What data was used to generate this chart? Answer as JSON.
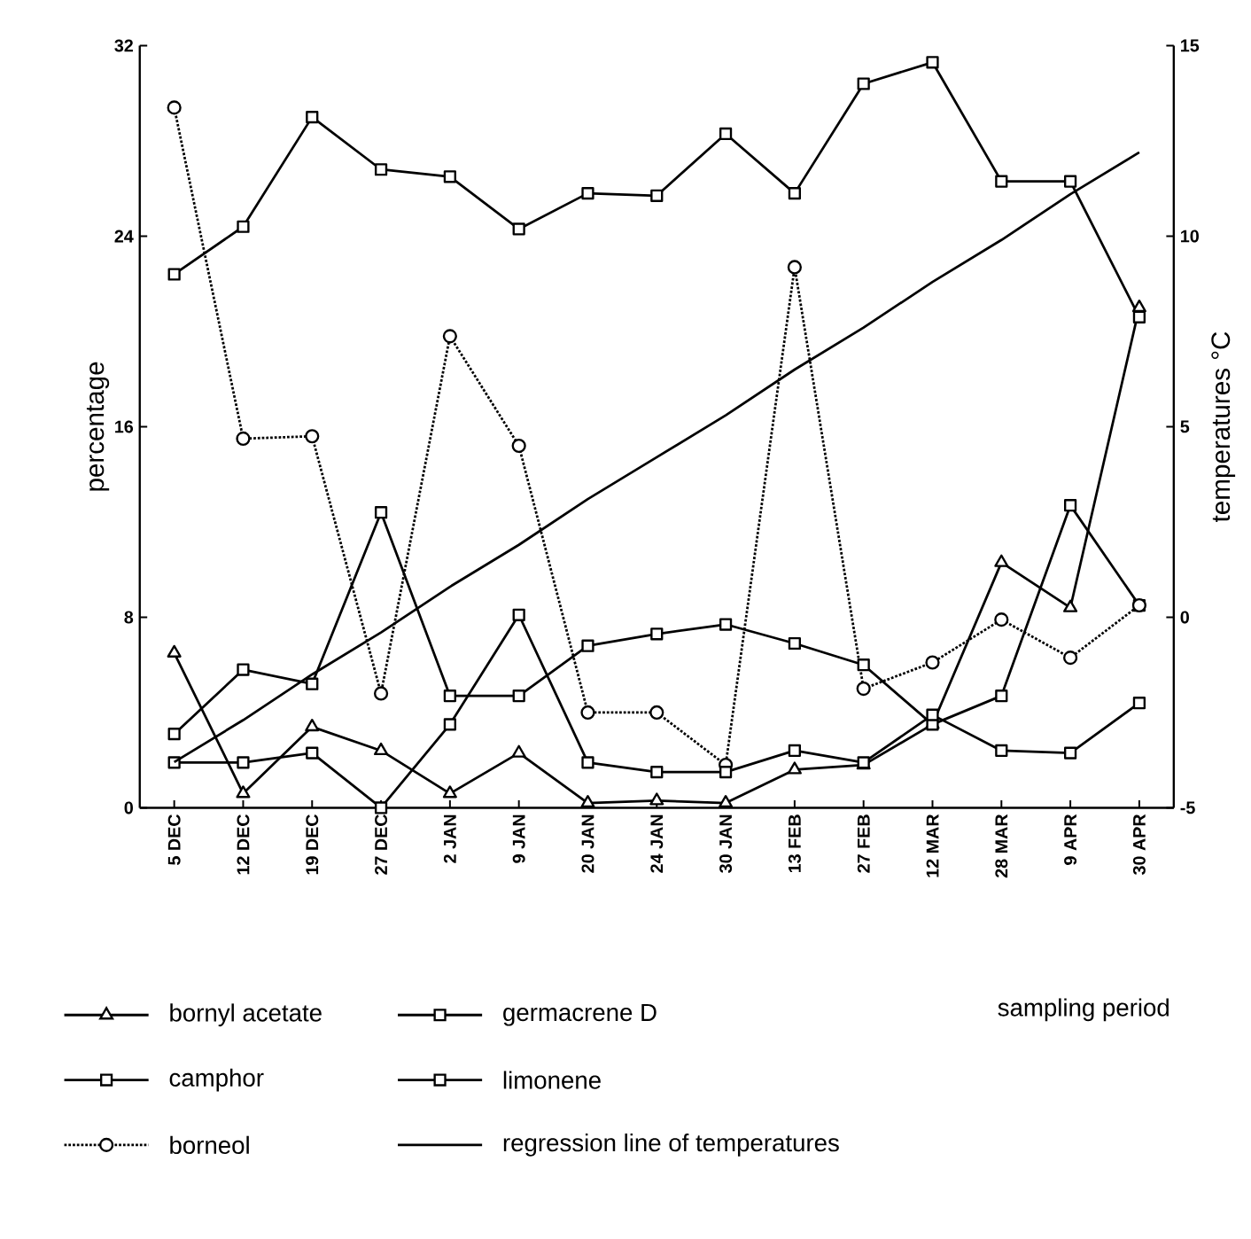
{
  "chart_data": {
    "type": "line",
    "annotations": [
      "sampling period"
    ],
    "ylabel": "percentage",
    "y2label": "temperatures °C",
    "categories": [
      "5 DEC",
      "12 DEC",
      "19 DEC",
      "27 DEC",
      "2 JAN",
      "9 JAN",
      "20 JAN",
      "24 JAN",
      "30 JAN",
      "13 FEB",
      "27 FEB",
      "12 MAR",
      "28 MAR",
      "9 APR",
      "30 APR"
    ],
    "ylim": [
      0,
      32
    ],
    "yticks": [
      0,
      8,
      16,
      24,
      32
    ],
    "y2lim": [
      -5,
      15
    ],
    "y2ticks": [
      -5,
      0,
      5,
      10,
      15
    ],
    "legend": "bottom",
    "series": [
      {
        "name": "bornyl acetate",
        "color": "#000000",
        "marker": "triangle",
        "line_style": "solid",
        "values": [
          6.5,
          0.6,
          3.4,
          2.4,
          0.6,
          2.3,
          0.2,
          0.3,
          0.2,
          1.6,
          1.8,
          3.5,
          10.3,
          8.4,
          21.0
        ]
      },
      {
        "name": "camphor",
        "color": "#000000",
        "marker": "square",
        "line_style": "solid",
        "values": [
          3.1,
          5.8,
          5.2,
          12.4,
          4.7,
          4.7,
          6.8,
          7.3,
          7.7,
          6.9,
          6.0,
          3.5,
          4.7,
          12.7,
          8.5
        ]
      },
      {
        "name": "borneol",
        "color": "#000000",
        "marker": "circle",
        "line_style": "dotted",
        "values": [
          29.4,
          15.5,
          15.6,
          4.8,
          19.8,
          15.2,
          4.0,
          4.0,
          1.8,
          22.7,
          5.0,
          6.1,
          7.9,
          6.3,
          8.5
        ]
      },
      {
        "name": "germacrene D",
        "color": "#000000",
        "marker": "square",
        "line_style": "solid",
        "values": [
          1.9,
          1.9,
          2.3,
          0.0,
          3.5,
          8.1,
          1.9,
          1.5,
          1.5,
          2.4,
          1.9,
          3.9,
          2.4,
          2.3,
          4.4
        ]
      },
      {
        "name": "limonene",
        "color": "#000000",
        "marker": "square",
        "line_style": "solid",
        "values": [
          22.4,
          24.4,
          29.0,
          26.8,
          26.5,
          24.3,
          25.8,
          25.7,
          28.3,
          25.8,
          30.4,
          31.3,
          26.3,
          26.3,
          20.6
        ]
      },
      {
        "name": "regression line of temperatures",
        "color": "#000000",
        "marker": "none",
        "line_style": "solid",
        "axis": "y2",
        "values": [
          -3.8,
          -2.7,
          -1.5,
          -0.4,
          0.8,
          1.9,
          3.1,
          4.2,
          5.3,
          6.5,
          7.6,
          8.8,
          9.9,
          11.1,
          12.2
        ]
      }
    ]
  }
}
